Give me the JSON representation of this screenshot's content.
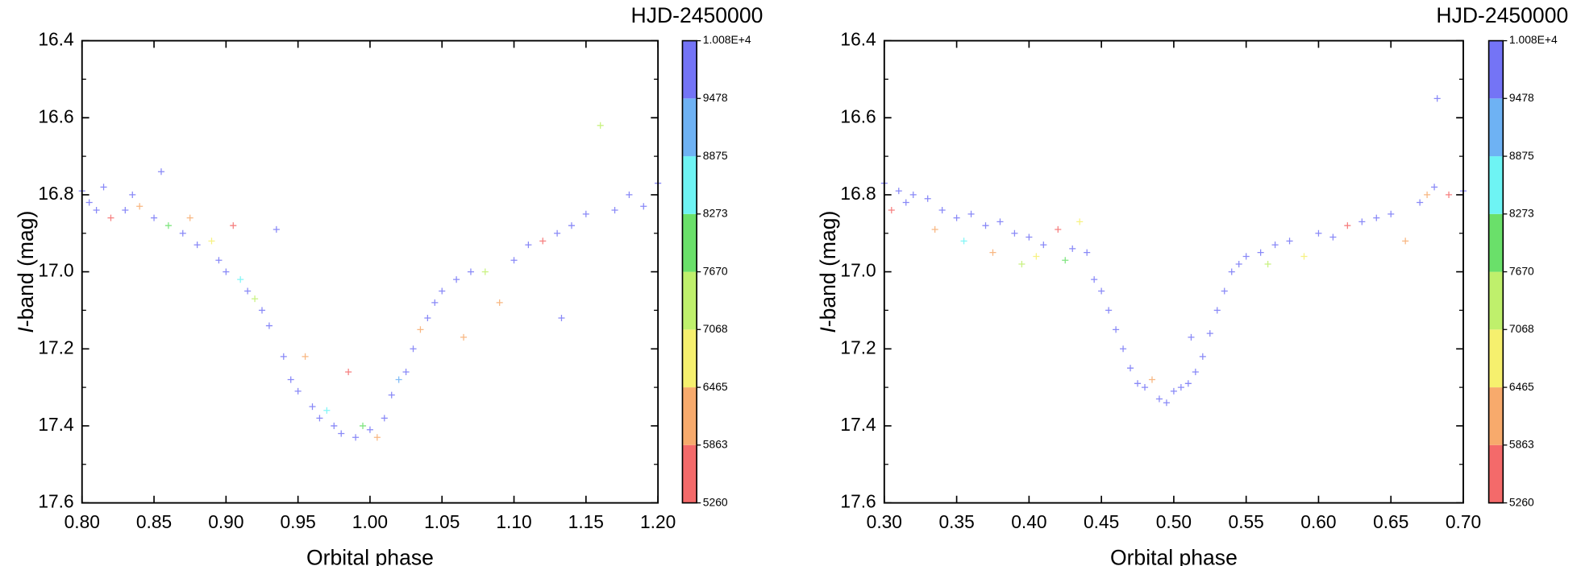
{
  "chart_data": [
    {
      "type": "scatter",
      "x_label": "Orbital phase",
      "y_label_italic": "I",
      "y_label": "-band (mag)",
      "colorbar_label": "HJD-2450000",
      "xlim": [
        0.8,
        1.2
      ],
      "ylim": [
        16.4,
        17.6
      ],
      "y_inverted": true,
      "xticks": [
        {
          "value": 0.8,
          "label": "0.80"
        },
        0.85,
        {
          "value": 0.9,
          "label": "0.90"
        },
        0.95,
        {
          "value": 1,
          "label": "1.00"
        },
        1.05,
        {
          "value": 1.1,
          "label": "1.10"
        },
        1.15,
        {
          "value": 1.2,
          "label": "1.20"
        }
      ],
      "yticks": [
        16.4,
        16.6,
        16.8,
        {
          "value": 17,
          "label": "17.0"
        },
        17.2,
        17.4,
        17.6
      ],
      "clim": [
        5260,
        10080
      ],
      "cticks": [
        5260,
        5863,
        6465,
        7068,
        7670,
        8273,
        8875,
        9478,
        {
          "value": 10080,
          "label": "1.008E+4"
        }
      ],
      "colorbar_colors": [
        "#f46a6a",
        "#f7aa6c",
        "#f6f06e",
        "#bff06c",
        "#6ae06a",
        "#6ef4f4",
        "#6eb2f4",
        "#7474f6"
      ],
      "x": [
        0.8,
        0.805,
        0.81,
        0.815,
        0.82,
        0.83,
        0.835,
        0.84,
        0.85,
        0.855,
        0.86,
        0.87,
        0.875,
        0.88,
        0.89,
        0.895,
        0.9,
        0.905,
        0.91,
        0.915,
        0.92,
        0.925,
        0.93,
        0.935,
        0.94,
        0.945,
        0.95,
        0.955,
        0.96,
        0.965,
        0.97,
        0.975,
        0.98,
        0.985,
        0.99,
        0.995,
        1.0,
        1.005,
        1.01,
        1.015,
        1.02,
        1.025,
        1.03,
        1.035,
        1.04,
        1.045,
        1.05,
        1.06,
        1.065,
        1.07,
        1.08,
        1.09,
        1.1,
        1.11,
        1.12,
        1.13,
        1.133,
        1.14,
        1.15,
        1.16,
        1.17,
        1.18,
        1.19,
        1.2
      ],
      "values": [
        16.79,
        16.82,
        16.84,
        16.78,
        16.86,
        16.84,
        16.8,
        16.83,
        16.86,
        16.74,
        16.88,
        16.9,
        16.86,
        16.93,
        16.92,
        16.97,
        17.0,
        16.88,
        17.02,
        17.05,
        17.07,
        17.1,
        17.14,
        16.89,
        17.22,
        17.28,
        17.31,
        17.22,
        17.35,
        17.38,
        17.36,
        17.4,
        17.42,
        17.26,
        17.43,
        17.4,
        17.41,
        17.43,
        17.38,
        17.32,
        17.28,
        17.26,
        17.2,
        17.15,
        17.12,
        17.08,
        17.05,
        17.02,
        17.17,
        17.0,
        17.0,
        17.08,
        16.97,
        16.93,
        16.92,
        16.9,
        17.12,
        16.88,
        16.85,
        16.62,
        16.84,
        16.8,
        16.83,
        16.77
      ],
      "hjd": [
        10010,
        9950,
        9900,
        10020,
        5500,
        9980,
        9600,
        6300,
        10000,
        9950,
        7800,
        10030,
        6000,
        9900,
        6900,
        10000,
        10040,
        5600,
        8400,
        9990,
        7300,
        10020,
        10000,
        9950,
        10010,
        9980,
        10000,
        6200,
        10050,
        9900,
        8700,
        10000,
        10030,
        5700,
        9980,
        7700,
        10010,
        6000,
        10000,
        10020,
        8900,
        9990,
        10000,
        5900,
        10010,
        9970,
        10030,
        10000,
        6400,
        9950,
        7400,
        6000,
        10020,
        10000,
        5500,
        10010,
        9950,
        10000,
        9990,
        7600,
        10030,
        10000,
        9600,
        10050
      ]
    },
    {
      "type": "scatter",
      "x_label": "Orbital phase",
      "y_label_italic": "I",
      "y_label": "-band (mag)",
      "colorbar_label": "HJD-2450000",
      "xlim": [
        0.3,
        0.7
      ],
      "ylim": [
        16.4,
        17.6
      ],
      "y_inverted": true,
      "xticks": [
        {
          "value": 0.3,
          "label": "0.30"
        },
        0.35,
        {
          "value": 0.4,
          "label": "0.40"
        },
        0.45,
        {
          "value": 0.5,
          "label": "0.50"
        },
        0.55,
        {
          "value": 0.6,
          "label": "0.60"
        },
        0.65,
        {
          "value": 0.7,
          "label": "0.70"
        }
      ],
      "yticks": [
        16.4,
        16.6,
        16.8,
        {
          "value": 17,
          "label": "17.0"
        },
        17.2,
        17.4,
        17.6
      ],
      "clim": [
        5260,
        10080
      ],
      "cticks": [
        5260,
        5863,
        6465,
        7068,
        7670,
        8273,
        8875,
        9478,
        {
          "value": 10080,
          "label": "1.008E+4"
        }
      ],
      "colorbar_colors": [
        "#f46a6a",
        "#f7aa6c",
        "#f6f06e",
        "#bff06c",
        "#6ae06a",
        "#6ef4f4",
        "#6eb2f4",
        "#7474f6"
      ],
      "x": [
        0.3,
        0.305,
        0.31,
        0.315,
        0.32,
        0.33,
        0.335,
        0.34,
        0.35,
        0.355,
        0.36,
        0.37,
        0.375,
        0.38,
        0.39,
        0.395,
        0.4,
        0.405,
        0.41,
        0.42,
        0.425,
        0.43,
        0.435,
        0.44,
        0.445,
        0.45,
        0.455,
        0.46,
        0.465,
        0.47,
        0.475,
        0.48,
        0.485,
        0.49,
        0.495,
        0.5,
        0.505,
        0.51,
        0.512,
        0.515,
        0.52,
        0.525,
        0.53,
        0.535,
        0.54,
        0.545,
        0.55,
        0.56,
        0.565,
        0.57,
        0.58,
        0.59,
        0.6,
        0.61,
        0.62,
        0.63,
        0.64,
        0.65,
        0.66,
        0.67,
        0.675,
        0.68,
        0.682,
        0.69,
        0.7
      ],
      "values": [
        16.77,
        16.84,
        16.79,
        16.82,
        16.8,
        16.81,
        16.89,
        16.84,
        16.86,
        16.92,
        16.85,
        16.88,
        16.95,
        16.87,
        16.9,
        16.98,
        16.91,
        16.96,
        16.93,
        16.89,
        16.97,
        16.94,
        16.87,
        16.95,
        17.02,
        17.05,
        17.1,
        17.15,
        17.2,
        17.25,
        17.29,
        17.3,
        17.28,
        17.33,
        17.34,
        17.31,
        17.3,
        17.29,
        17.17,
        17.26,
        17.22,
        17.16,
        17.1,
        17.05,
        17.0,
        16.98,
        16.96,
        16.95,
        16.98,
        16.93,
        16.92,
        16.96,
        16.9,
        16.91,
        16.88,
        16.87,
        16.86,
        16.85,
        16.92,
        16.82,
        16.8,
        16.78,
        16.55,
        16.8,
        16.79
      ],
      "hjd": [
        10010,
        5600,
        9950,
        10000,
        9980,
        10020,
        6300,
        10000,
        9950,
        8400,
        10030,
        9990,
        6000,
        10010,
        10000,
        7300,
        9980,
        6500,
        10020,
        5700,
        7700,
        10000,
        6900,
        9990,
        10030,
        10000,
        10010,
        9950,
        10000,
        10020,
        9980,
        10000,
        6200,
        10030,
        10000,
        9990,
        10010,
        10000,
        9950,
        10020,
        10000,
        9980,
        10010,
        10000,
        9990,
        10030,
        10000,
        10020,
        7600,
        10000,
        9950,
        6600,
        10010,
        10000,
        5800,
        9990,
        10030,
        10000,
        6100,
        10020,
        6000,
        10000,
        9950,
        5500,
        10010
      ]
    }
  ]
}
